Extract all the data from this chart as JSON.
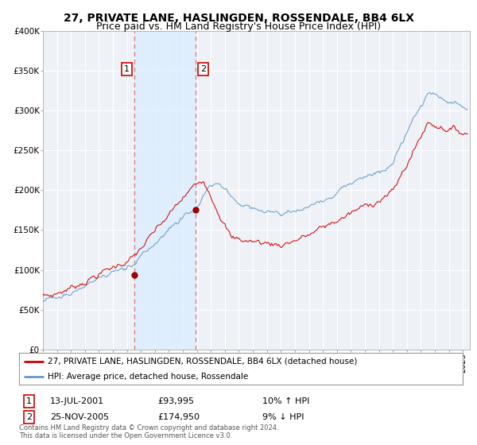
{
  "title_line1": "27, PRIVATE LANE, HASLINGDEN, ROSSENDALE, BB4 6LX",
  "title_line2": "Price paid vs. HM Land Registry's House Price Index (HPI)",
  "legend_line1": "27, PRIVATE LANE, HASLINGDEN, ROSSENDALE, BB4 6LX (detached house)",
  "legend_line2": "HPI: Average price, detached house, Rossendale",
  "table_row1": [
    "1",
    "13-JUL-2001",
    "£93,995",
    "10% ↑ HPI"
  ],
  "table_row2": [
    "2",
    "25-NOV-2005",
    "£174,950",
    "9% ↓ HPI"
  ],
  "footer": "Contains HM Land Registry data © Crown copyright and database right 2024.\nThis data is licensed under the Open Government Licence v3.0.",
  "marker1_date_num": 2001.54,
  "marker1_value": 93995,
  "marker2_date_num": 2005.9,
  "marker2_value": 174950,
  "vline1": 2001.54,
  "vline2": 2005.9,
  "shade_xmin": 2001.54,
  "shade_xmax": 2005.9,
  "ylim": [
    0,
    400000
  ],
  "xlim_start": 1995.0,
  "xlim_end": 2025.5,
  "color_red": "#cc0000",
  "color_blue": "#6699cc",
  "color_shade": "#ddeeff",
  "background_color": "#eef2f7",
  "grid_color": "#ffffff",
  "title_fontsize": 10,
  "subtitle_fontsize": 9
}
